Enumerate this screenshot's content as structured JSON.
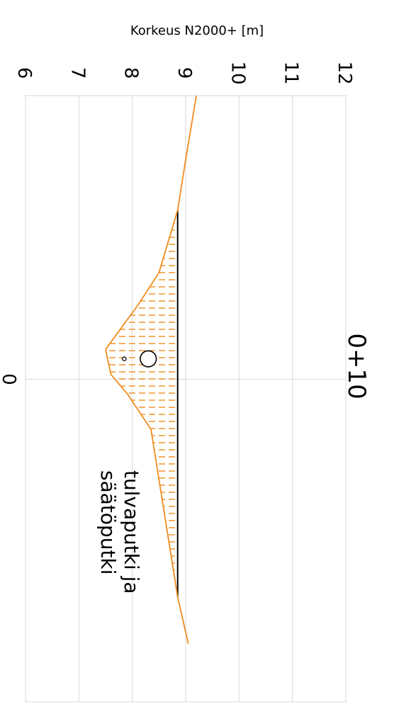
{
  "chart_data": {
    "type": "line",
    "title": "",
    "station_label": "0+10",
    "ylabel": "Korkeus N2000+ [m]",
    "xlabel": "",
    "ylim": [
      6,
      12
    ],
    "xlim": [
      -18.1,
      20.6
    ],
    "y_ticks": [
      "6",
      "7",
      "8",
      "9",
      "10",
      "11",
      "12"
    ],
    "x_ticks": [
      "0"
    ],
    "x_tick_values": [
      0
    ],
    "grid": true,
    "series": [
      {
        "role": "ground-profile",
        "color": "#f08c1e",
        "points": [
          {
            "x": -18.1,
            "y": 9.2
          },
          {
            "x": -14.0,
            "y": 9.0
          },
          {
            "x": -10.8,
            "y": 8.85
          },
          {
            "x": -6.8,
            "y": 8.5
          },
          {
            "x": -4.7,
            "y": 8.1
          },
          {
            "x": -1.9,
            "y": 7.5
          },
          {
            "x": -0.3,
            "y": 7.6
          },
          {
            "x": 0.9,
            "y": 7.9
          },
          {
            "x": 3.2,
            "y": 8.35
          },
          {
            "x": 13.9,
            "y": 8.85
          },
          {
            "x": 16.9,
            "y": 9.05
          }
        ]
      },
      {
        "role": "water-level",
        "color": "#000000",
        "points": [
          {
            "x": -10.8,
            "y": 8.85
          },
          {
            "x": 13.9,
            "y": 8.85
          }
        ]
      }
    ],
    "pipes": [
      {
        "x": -1.3,
        "y": 8.3,
        "diameter": 0.3
      },
      {
        "x": -1.3,
        "y": 7.85,
        "diameter": 0.07
      }
    ],
    "annotation": [
      "tulvaputki ja",
      "säätöputki"
    ],
    "colors": {
      "profile": "#f08c1e",
      "grid": "#d9d9d9",
      "water": "#000000"
    }
  }
}
